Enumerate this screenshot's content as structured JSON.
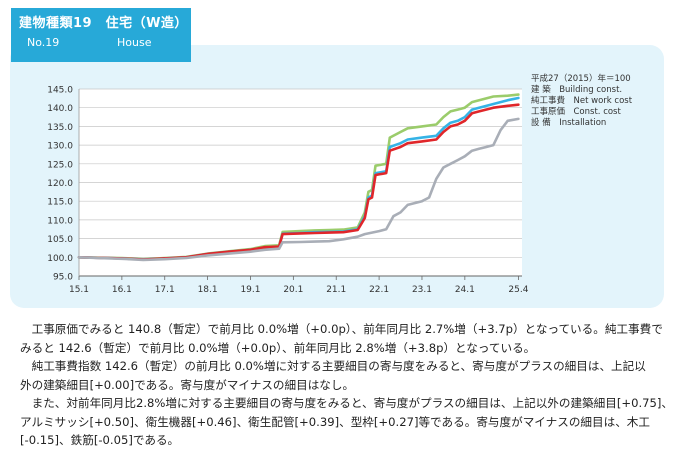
{
  "header": {
    "title": "建物種類19　住宅（W造）",
    "number": "No.19",
    "name_en": "House"
  },
  "legend": {
    "base": "平成27（2015）年＝100",
    "items": [
      {
        "label": "建 築　Building const.",
        "color": "#9bcc6b"
      },
      {
        "label": "純工事費　Net work cost",
        "color": "#35b3e6"
      },
      {
        "label": "工事原価　Const. cost",
        "color": "#e0262a"
      },
      {
        "label": "設 備　Installation",
        "color": "#a9aeb7"
      }
    ]
  },
  "chart_data": {
    "type": "line",
    "title": "建物種類19　住宅（W造）",
    "xlabel": "",
    "ylabel": "",
    "ylim": [
      95.0,
      145.0
    ],
    "yticks": [
      "95.0",
      "100.0",
      "105.0",
      "110.0",
      "115.0",
      "120.0",
      "125.0",
      "130.0",
      "135.0",
      "140.0",
      "145.0"
    ],
    "xlim": [
      0,
      124
    ],
    "xticks": [
      {
        "label": "15.1",
        "x": 0
      },
      {
        "label": "16.1",
        "x": 12
      },
      {
        "label": "17.1",
        "x": 24
      },
      {
        "label": "18.1",
        "x": 36
      },
      {
        "label": "19.1",
        "x": 48
      },
      {
        "label": "20.1",
        "x": 60
      },
      {
        "label": "21.1",
        "x": 72
      },
      {
        "label": "22.1",
        "x": 84
      },
      {
        "label": "23.1",
        "x": 96
      },
      {
        "label": "24.1",
        "x": 108
      },
      {
        "label": "25.4",
        "x": 123
      }
    ],
    "series": [
      {
        "name": "建 築　Building const.",
        "color": "#9bcc6b",
        "points": [
          [
            0,
            100.0
          ],
          [
            12,
            99.8
          ],
          [
            18,
            99.5
          ],
          [
            24,
            99.8
          ],
          [
            30,
            100.1
          ],
          [
            36,
            101.0
          ],
          [
            42,
            101.6
          ],
          [
            48,
            102.2
          ],
          [
            52,
            103.0
          ],
          [
            56,
            103.2
          ],
          [
            57,
            106.8
          ],
          [
            62,
            107.0
          ],
          [
            66,
            107.2
          ],
          [
            70,
            107.3
          ],
          [
            74,
            107.4
          ],
          [
            78,
            108.0
          ],
          [
            80,
            112.0
          ],
          [
            81,
            117.5
          ],
          [
            82,
            118.0
          ],
          [
            83,
            124.5
          ],
          [
            86,
            125.0
          ],
          [
            87,
            132.0
          ],
          [
            90,
            133.5
          ],
          [
            92,
            134.5
          ],
          [
            96,
            135.0
          ],
          [
            100,
            135.5
          ],
          [
            102,
            137.5
          ],
          [
            104,
            139.0
          ],
          [
            106,
            139.5
          ],
          [
            108,
            140.0
          ],
          [
            110,
            141.5
          ],
          [
            112,
            142.0
          ],
          [
            116,
            143.0
          ],
          [
            120,
            143.2
          ],
          [
            123,
            143.5
          ]
        ]
      },
      {
        "name": "純工事費　Net work cost",
        "color": "#35b3e6",
        "points": [
          [
            0,
            100.0
          ],
          [
            12,
            99.7
          ],
          [
            18,
            99.4
          ],
          [
            24,
            99.7
          ],
          [
            30,
            100.0
          ],
          [
            36,
            100.9
          ],
          [
            42,
            101.5
          ],
          [
            48,
            102.0
          ],
          [
            52,
            102.6
          ],
          [
            56,
            102.8
          ],
          [
            57,
            106.3
          ],
          [
            62,
            106.5
          ],
          [
            66,
            106.7
          ],
          [
            70,
            106.8
          ],
          [
            74,
            106.9
          ],
          [
            78,
            107.5
          ],
          [
            80,
            111.0
          ],
          [
            81,
            116.0
          ],
          [
            82,
            116.5
          ],
          [
            83,
            122.5
          ],
          [
            86,
            123.0
          ],
          [
            87,
            129.5
          ],
          [
            90,
            130.5
          ],
          [
            92,
            131.5
          ],
          [
            96,
            132.0
          ],
          [
            100,
            132.5
          ],
          [
            102,
            134.5
          ],
          [
            104,
            136.0
          ],
          [
            106,
            136.5
          ],
          [
            108,
            137.5
          ],
          [
            110,
            139.5
          ],
          [
            112,
            140.0
          ],
          [
            116,
            141.0
          ],
          [
            120,
            142.0
          ],
          [
            123,
            142.6
          ]
        ]
      },
      {
        "name": "工事原価　Const. cost",
        "color": "#e0262a",
        "points": [
          [
            0,
            100.0
          ],
          [
            12,
            99.7
          ],
          [
            18,
            99.4
          ],
          [
            24,
            99.7
          ],
          [
            30,
            100.0
          ],
          [
            36,
            100.9
          ],
          [
            42,
            101.5
          ],
          [
            48,
            102.0
          ],
          [
            52,
            102.7
          ],
          [
            56,
            102.9
          ],
          [
            57,
            106.2
          ],
          [
            62,
            106.4
          ],
          [
            66,
            106.5
          ],
          [
            70,
            106.6
          ],
          [
            74,
            106.7
          ],
          [
            78,
            107.3
          ],
          [
            80,
            110.5
          ],
          [
            81,
            115.5
          ],
          [
            82,
            116.0
          ],
          [
            83,
            122.0
          ],
          [
            86,
            122.5
          ],
          [
            87,
            128.5
          ],
          [
            90,
            129.5
          ],
          [
            92,
            130.5
          ],
          [
            96,
            131.0
          ],
          [
            100,
            131.5
          ],
          [
            102,
            133.5
          ],
          [
            104,
            135.0
          ],
          [
            106,
            135.5
          ],
          [
            108,
            136.5
          ],
          [
            110,
            138.5
          ],
          [
            112,
            139.0
          ],
          [
            116,
            140.0
          ],
          [
            120,
            140.5
          ],
          [
            123,
            140.8
          ]
        ]
      },
      {
        "name": "設 備　Installation",
        "color": "#a9aeb7",
        "points": [
          [
            0,
            100.0
          ],
          [
            12,
            99.6
          ],
          [
            18,
            99.3
          ],
          [
            24,
            99.5
          ],
          [
            30,
            99.8
          ],
          [
            36,
            100.5
          ],
          [
            42,
            101.0
          ],
          [
            48,
            101.5
          ],
          [
            52,
            102.0
          ],
          [
            56,
            102.3
          ],
          [
            57,
            104.0
          ],
          [
            62,
            104.1
          ],
          [
            66,
            104.2
          ],
          [
            70,
            104.3
          ],
          [
            74,
            104.8
          ],
          [
            78,
            105.5
          ],
          [
            80,
            106.2
          ],
          [
            84,
            107.0
          ],
          [
            86,
            107.5
          ],
          [
            88,
            111.0
          ],
          [
            90,
            112.0
          ],
          [
            92,
            114.0
          ],
          [
            96,
            115.0
          ],
          [
            98,
            116.0
          ],
          [
            100,
            121.0
          ],
          [
            102,
            124.0
          ],
          [
            104,
            125.0
          ],
          [
            106,
            126.0
          ],
          [
            108,
            127.0
          ],
          [
            110,
            128.5
          ],
          [
            112,
            129.0
          ],
          [
            114,
            129.5
          ],
          [
            116,
            130.0
          ],
          [
            118,
            134.0
          ],
          [
            120,
            136.5
          ],
          [
            123,
            137.0
          ]
        ]
      }
    ]
  },
  "body": {
    "p1_l1": "工事原価でみると 140.8（暫定）で前月比 0.0%増（+0.0p）、前年同月比 2.7%増（+3.7p）となっている。純工事費で",
    "p1_l2": "みると 142.6（暫定）で前月比 0.0%増（+0.0p）、前年同月比 2.8%増（+3.8p）となっている。",
    "p2_l1": "純工事費指数 142.6（暫定）の前月比 0.0%増に対する主要細目の寄与度をみると、寄与度がプラスの細目は、上記以",
    "p2_l2": "外の建築細目[+0.00]である。寄与度がマイナスの細目はなし。",
    "p3_l1": "また、対前年同月比2.8%増に対する主要細目の寄与度をみると、寄与度がプラスの細目は、上記以外の建築細目[+0.75]、",
    "p3_l2": "アルミサッシ[+0.50]、衛生機器[+0.46]、衛生配管[+0.39]、型枠[+0.27]等である。寄与度がマイナスの細目は、木工",
    "p3_l3": "[-0.15]、鉄筋[-0.05]である。"
  }
}
